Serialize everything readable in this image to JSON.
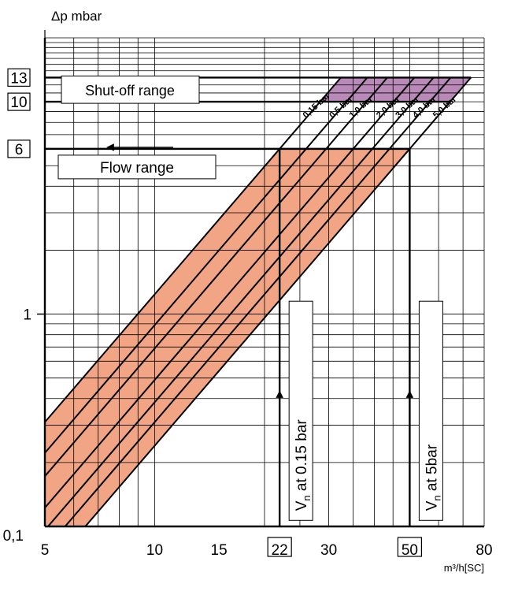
{
  "chart_data": {
    "type": "line",
    "y_axis_label": "Δp mbar",
    "x_axis_label": "m³/h[SC]",
    "x_scale": "log",
    "y_scale": "log",
    "xlim": [
      5,
      80
    ],
    "ylim": [
      0.1,
      20
    ],
    "grid": true,
    "x_ticks": [
      {
        "value": 5,
        "label": "5",
        "boxed": false
      },
      {
        "value": 10,
        "label": "10",
        "boxed": false
      },
      {
        "value": 15,
        "label": "15",
        "boxed": false
      },
      {
        "value": 22,
        "label": "22",
        "boxed": true
      },
      {
        "value": 30,
        "label": "30",
        "boxed": false
      },
      {
        "value": 50,
        "label": "50",
        "boxed": true
      },
      {
        "value": 80,
        "label": "80",
        "boxed": false
      }
    ],
    "y_ticks": [
      {
        "value": 0.1,
        "label": "0,1",
        "boxed": false
      },
      {
        "value": 1,
        "label": "1",
        "boxed": false
      },
      {
        "value": 6,
        "label": "6",
        "boxed": true
      },
      {
        "value": 10,
        "label": "10",
        "boxed": true
      },
      {
        "value": 13,
        "label": "13",
        "boxed": true
      }
    ],
    "series": [
      {
        "name": "0.15 bar",
        "label": "0,15 bar",
        "flow_at_6mbar": 22
      },
      {
        "name": "0.5 bar",
        "label": "0,5 bar",
        "flow_at_6mbar": 26
      },
      {
        "name": "1.0 bar",
        "label": "1,0 bar",
        "flow_at_6mbar": 29.5
      },
      {
        "name": "2.0 bar",
        "label": "2,0 bar",
        "flow_at_6mbar": 35
      },
      {
        "name": "3.0 bar",
        "label": "3,0 bar",
        "flow_at_6mbar": 39.5
      },
      {
        "name": "4.0 bar",
        "label": "4,0 bar",
        "flow_at_6mbar": 44
      },
      {
        "name": "5.0 bar",
        "label": "5,0 bar",
        "flow_at_6mbar": 50
      }
    ],
    "flow_range": {
      "label": "Flow range",
      "dp_max": 6,
      "color": "#f2a585"
    },
    "shutoff_range": {
      "label": "Shut-off range",
      "dp_min": 10,
      "dp_max": 13,
      "color": "#b98ab8"
    },
    "annotations": [
      {
        "text": "at 0.15 bar",
        "main": "V",
        "sub": "n",
        "flow": 22
      },
      {
        "text": "at 5bar",
        "main": "V",
        "sub": "n",
        "flow": 50
      }
    ]
  }
}
